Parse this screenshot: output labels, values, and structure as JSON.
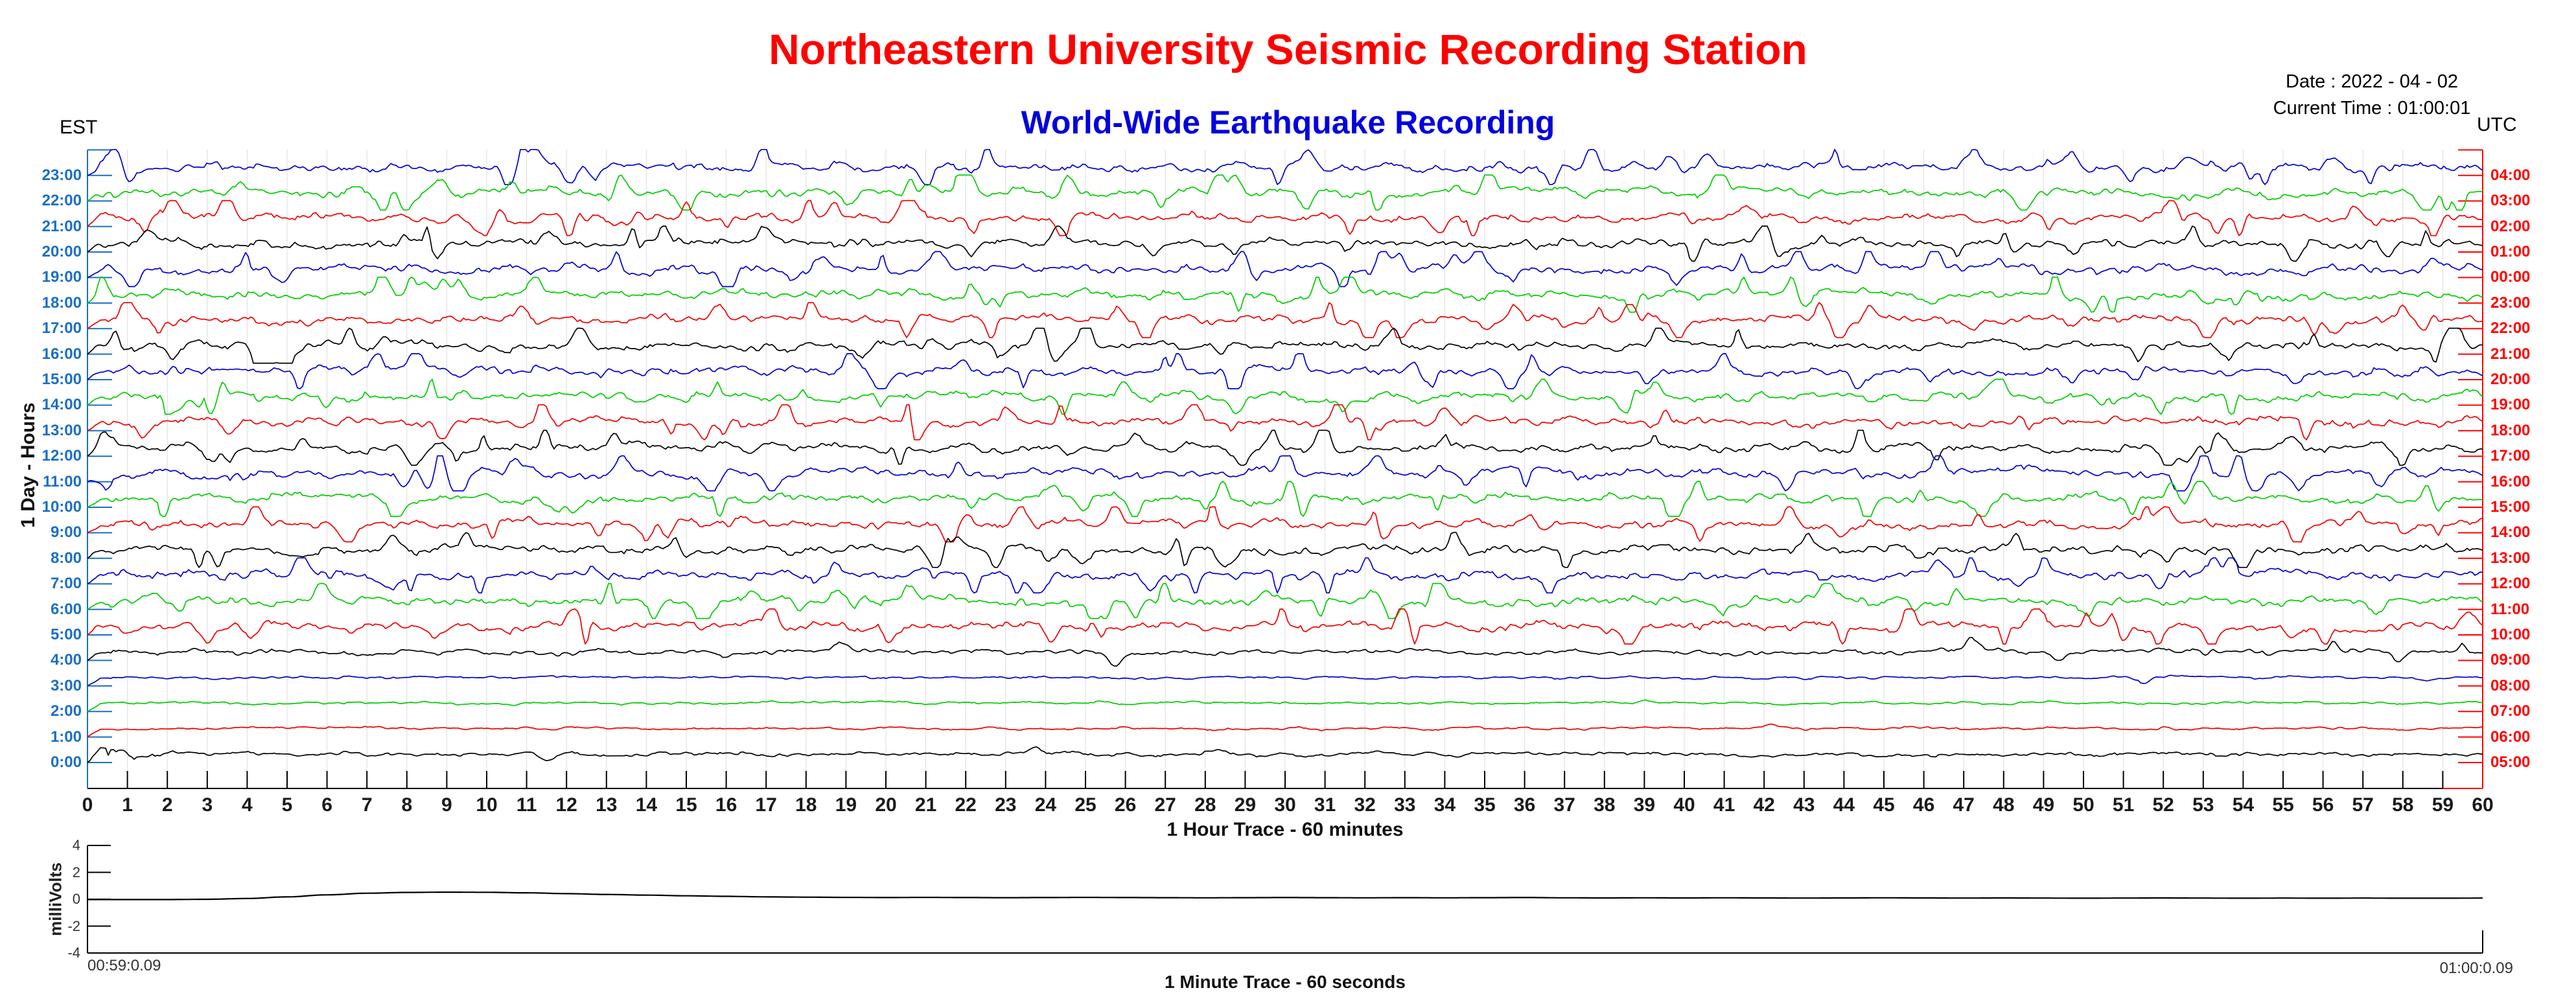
{
  "header": {
    "title": "Northeastern University Seismic Recording Station",
    "subtitle": "World-Wide Earthquake Recording",
    "date_line": "Date : 2022 - 04 - 02",
    "time_line": "Current Time : 01:00:01",
    "left_tz": "EST",
    "right_tz": "UTC"
  },
  "colors": {
    "title": "#FF0000",
    "subtitle": "#0202DD",
    "left_axis": "#1B6FC4",
    "left_labels": "#1B6FC4",
    "right_axis": "#FF0000",
    "right_labels": "#FF0000",
    "grid": "#DCDCDC",
    "x_axis": "#000000",
    "x_axis_end_segment": "#FF0000",
    "trace_cycle": [
      "#0000CC",
      "#00CC00",
      "#EE0000",
      "#000000"
    ]
  },
  "chart_data": [
    {
      "type": "line",
      "name": "helicorder-24h",
      "xlabel": "1 Hour Trace - 60 minutes",
      "ylabel": "1 Day - Hours",
      "xlim": [
        0,
        60
      ],
      "x_ticks": {
        "min": 0,
        "max": 60,
        "step": 1
      },
      "grid": "vertical-every-minute",
      "rows_top_to_bottom": "23:00 EST at top, 0:00 EST at bottom; colors cycle blue-green-red-black",
      "rows": [
        {
          "est": "23:00",
          "utc": "04:00",
          "color": "#0000CC",
          "activity": "high"
        },
        {
          "est": "22:00",
          "utc": "03:00",
          "color": "#00CC00",
          "activity": "high"
        },
        {
          "est": "21:00",
          "utc": "02:00",
          "color": "#EE0000",
          "activity": "high"
        },
        {
          "est": "20:00",
          "utc": "01:00",
          "color": "#000000",
          "activity": "high"
        },
        {
          "est": "19:00",
          "utc": "00:00",
          "color": "#0000CC",
          "activity": "high"
        },
        {
          "est": "18:00",
          "utc": "23:00",
          "color": "#00CC00",
          "activity": "high"
        },
        {
          "est": "17:00",
          "utc": "22:00",
          "color": "#EE0000",
          "activity": "high"
        },
        {
          "est": "16:00",
          "utc": "21:00",
          "color": "#000000",
          "activity": "high"
        },
        {
          "est": "15:00",
          "utc": "20:00",
          "color": "#0000CC",
          "activity": "high"
        },
        {
          "est": "14:00",
          "utc": "19:00",
          "color": "#00CC00",
          "activity": "high"
        },
        {
          "est": "13:00",
          "utc": "18:00",
          "color": "#EE0000",
          "activity": "high"
        },
        {
          "est": "12:00",
          "utc": "17:00",
          "color": "#000000",
          "activity": "high"
        },
        {
          "est": "11:00",
          "utc": "16:00",
          "color": "#0000CC",
          "activity": "high"
        },
        {
          "est": "10:00",
          "utc": "15:00",
          "color": "#00CC00",
          "activity": "high"
        },
        {
          "est": "9:00",
          "utc": "14:00",
          "color": "#EE0000",
          "activity": "high"
        },
        {
          "est": "8:00",
          "utc": "13:00",
          "color": "#000000",
          "activity": "high"
        },
        {
          "est": "7:00",
          "utc": "12:00",
          "color": "#0000CC",
          "activity": "high"
        },
        {
          "est": "6:00",
          "utc": "11:00",
          "color": "#00CC00",
          "activity": "high"
        },
        {
          "est": "5:00",
          "utc": "10:00",
          "color": "#EE0000",
          "activity": "high"
        },
        {
          "est": "4:00",
          "utc": "09:00",
          "color": "#000000",
          "activity": "medium"
        },
        {
          "est": "3:00",
          "utc": "08:00",
          "color": "#0000CC",
          "activity": "low"
        },
        {
          "est": "2:00",
          "utc": "07:00",
          "color": "#00CC00",
          "activity": "low"
        },
        {
          "est": "1:00",
          "utc": "06:00",
          "color": "#EE0000",
          "activity": "low"
        },
        {
          "est": "0:00",
          "utc": "05:00",
          "color": "#000000",
          "activity": "low-burst"
        }
      ]
    },
    {
      "type": "line",
      "name": "minute-trace",
      "xlabel": "1 Minute Trace  - 60 seconds",
      "ylabel": "milliVolts",
      "ylim": [
        -4,
        4
      ],
      "y_ticks": [
        4,
        2,
        0,
        -2,
        -4
      ],
      "start_label": "00:59:0.09",
      "end_label": "01:00:0.09",
      "x_seconds": [
        0,
        1,
        2,
        3,
        4,
        5,
        6,
        7,
        8,
        9,
        10,
        11,
        12,
        13,
        14,
        15,
        16,
        17,
        18,
        19,
        20,
        21,
        22,
        23,
        24,
        25,
        26,
        27,
        28,
        29,
        30,
        31,
        32,
        33,
        34,
        35,
        36,
        37,
        38,
        39,
        40,
        41,
        42,
        43,
        44,
        45,
        46,
        47,
        48,
        49,
        50,
        51,
        52,
        53,
        54,
        55,
        56,
        57,
        58,
        59,
        60
      ],
      "values_mv": [
        0,
        0,
        0,
        0.02,
        0.08,
        0.2,
        0.35,
        0.47,
        0.53,
        0.55,
        0.54,
        0.5,
        0.44,
        0.38,
        0.33,
        0.28,
        0.24,
        0.2,
        0.18,
        0.16,
        0.15,
        0.16,
        0.15,
        0.14,
        0.15,
        0.16,
        0.15,
        0.14,
        0.13,
        0.14,
        0.15,
        0.14,
        0.13,
        0.14,
        0.13,
        0.14,
        0.15,
        0.13,
        0.12,
        0.13,
        0.12,
        0.13,
        0.12,
        0.11,
        0.12,
        0.13,
        0.12,
        0.11,
        0.12,
        0.11,
        0.1,
        0.11,
        0.12,
        0.11,
        0.1,
        0.11,
        0.1,
        0.11,
        0.1,
        0.1,
        0.11
      ]
    }
  ]
}
